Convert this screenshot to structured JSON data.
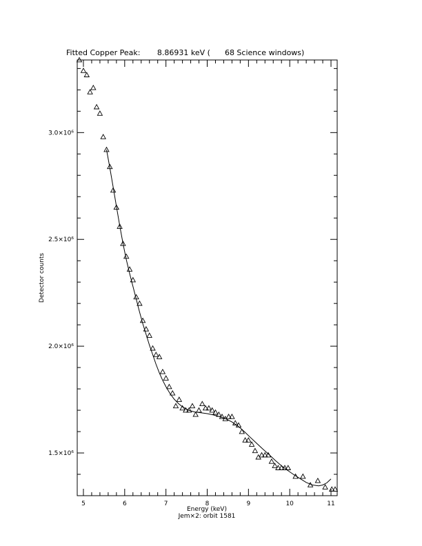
{
  "chart_data": {
    "type": "scatter",
    "title": "Fitted Copper Peak:       8.86931 keV (      68 Science windows)",
    "xlabel": "Energy (keV)",
    "ylabel": "Detector counts",
    "subtitle": "Jem×2: orbit 1581",
    "xlim": [
      4.85,
      11.15
    ],
    "ylim": [
      1300000,
      3340000
    ],
    "x_ticks": [
      5,
      6,
      7,
      8,
      9,
      10,
      11
    ],
    "x_tick_labels": [
      "5",
      "6",
      "7",
      "8",
      "9",
      "10",
      "11"
    ],
    "y_ticks": [
      1500000,
      2000000,
      2500000,
      3000000
    ],
    "y_tick_labels": [
      "1.5×10⁶",
      "2.0×10⁶",
      "2.5×10⁶",
      "3.0×10⁶"
    ],
    "grid": false,
    "legend": "none",
    "series": [
      {
        "marker": "triangle",
        "x": [
          4.9,
          5.0,
          5.08,
          5.16,
          5.24,
          5.32,
          5.4,
          5.48,
          5.56,
          5.64,
          5.72,
          5.8,
          5.88,
          5.96,
          6.04,
          6.12,
          6.2,
          6.28,
          6.36,
          6.44,
          6.52,
          6.6,
          6.68,
          6.76,
          6.84,
          6.92,
          7.0,
          7.08,
          7.16,
          7.24,
          7.32,
          7.4,
          7.48,
          7.56,
          7.64,
          7.72,
          7.8,
          7.88,
          7.96,
          8.04,
          8.12,
          8.2,
          8.28,
          8.36,
          8.44,
          8.52,
          8.6,
          8.68,
          8.76,
          8.84,
          8.92,
          9.0,
          9.08,
          9.16,
          9.24,
          9.32,
          9.4,
          9.48,
          9.56,
          9.64,
          9.72,
          9.8,
          9.88,
          9.96,
          10.14,
          10.32,
          10.5,
          10.68,
          10.86,
          11.02,
          11.1
        ],
        "y": [
          3340000,
          3290000,
          3270000,
          3190000,
          3210000,
          3120000,
          3090000,
          2980000,
          2920000,
          2840000,
          2730000,
          2650000,
          2560000,
          2480000,
          2420000,
          2360000,
          2310000,
          2230000,
          2200000,
          2120000,
          2080000,
          2050000,
          1990000,
          1960000,
          1950000,
          1880000,
          1850000,
          1810000,
          1780000,
          1720000,
          1750000,
          1710000,
          1700000,
          1700000,
          1720000,
          1680000,
          1700000,
          1730000,
          1710000,
          1710000,
          1700000,
          1690000,
          1680000,
          1670000,
          1660000,
          1670000,
          1670000,
          1640000,
          1630000,
          1600000,
          1560000,
          1560000,
          1540000,
          1510000,
          1480000,
          1490000,
          1490000,
          1490000,
          1460000,
          1440000,
          1430000,
          1430000,
          1430000,
          1430000,
          1390000,
          1390000,
          1350000,
          1370000,
          1340000,
          1330000,
          1330000
        ]
      },
      {
        "type": "line",
        "x": [
          5.56,
          5.64,
          5.72,
          5.8,
          5.88,
          5.96,
          6.04,
          6.12,
          6.2,
          6.28,
          6.36,
          6.44,
          6.52,
          6.6,
          6.68,
          6.76,
          6.84,
          6.92,
          7.0,
          7.1,
          7.2,
          7.3,
          7.4,
          7.55,
          7.7,
          7.85,
          8.0,
          8.15,
          8.3,
          8.45,
          8.6,
          8.75,
          8.9,
          9.05,
          9.2,
          9.35,
          9.5,
          9.65,
          9.8,
          9.95,
          10.1,
          10.25,
          10.4,
          10.55,
          10.7,
          10.8,
          10.9,
          11.0
        ],
        "y": [
          2920000,
          2835000,
          2745000,
          2655000,
          2565000,
          2480000,
          2405000,
          2340000,
          2280000,
          2220000,
          2160000,
          2105000,
          2055000,
          2005000,
          1960000,
          1915000,
          1875000,
          1840000,
          1810000,
          1778000,
          1752000,
          1732000,
          1716000,
          1700000,
          1692000,
          1688000,
          1684000,
          1678000,
          1670000,
          1660000,
          1645000,
          1625000,
          1600000,
          1572000,
          1545000,
          1518000,
          1492000,
          1465000,
          1440000,
          1418000,
          1398000,
          1380000,
          1362000,
          1350000,
          1346000,
          1350000,
          1360000,
          1378000
        ]
      }
    ]
  }
}
